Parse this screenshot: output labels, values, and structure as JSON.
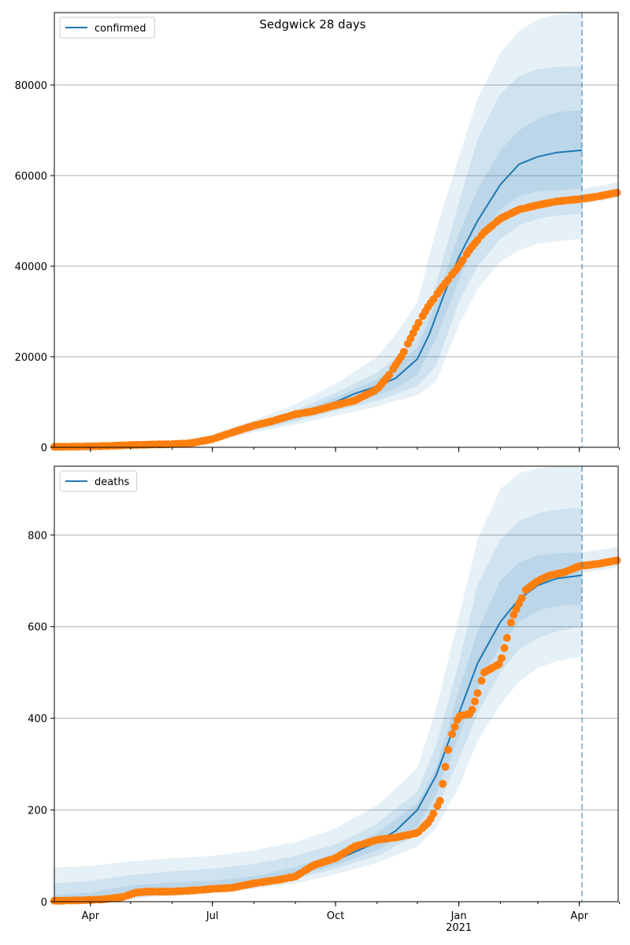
{
  "figure": {
    "title": "Sedgwick 28 days"
  },
  "colors": {
    "line": "#1f77b4",
    "band": "#1f77b4",
    "observed": "#ff7f0e",
    "grid": "#b0b0b0",
    "vline": "#1f77b4"
  },
  "x_axis": {
    "ticks": [
      {
        "label": "Apr",
        "date": "2020-04-01"
      },
      {
        "label": "Jul",
        "date": "2020-07-01"
      },
      {
        "label": "Oct",
        "date": "2020-10-01"
      },
      {
        "label": "Jan",
        "sublabel": "2021",
        "date": "2021-01-01"
      },
      {
        "label": "Apr",
        "date": "2021-04-01"
      }
    ],
    "range": [
      "2020-03-05",
      "2021-04-30"
    ],
    "forecast_start": "2021-04-03"
  },
  "chart_data": [
    {
      "type": "line",
      "legend": "confirmed",
      "legend_position": "upper-left",
      "grid": "y",
      "ylim": [
        0,
        96000
      ],
      "yticks": [
        0,
        20000,
        40000,
        60000,
        80000
      ],
      "line": {
        "name": "confirmed",
        "x": [
          "2020-03-05",
          "2020-04-01",
          "2020-05-01",
          "2020-06-01",
          "2020-06-15",
          "2020-07-01",
          "2020-07-15",
          "2020-08-01",
          "2020-08-15",
          "2020-09-01",
          "2020-09-15",
          "2020-10-01",
          "2020-10-15",
          "2020-11-01",
          "2020-11-15",
          "2020-12-01",
          "2020-12-10",
          "2020-12-20",
          "2021-01-01",
          "2021-01-15",
          "2021-02-01",
          "2021-02-15",
          "2021-03-01",
          "2021-03-15",
          "2021-04-03"
        ],
        "y": [
          100,
          150,
          300,
          700,
          1000,
          1800,
          3000,
          4300,
          5200,
          6700,
          8300,
          10000,
          11800,
          13500,
          15300,
          19500,
          25000,
          33000,
          42000,
          50000,
          58000,
          62500,
          64200,
          65100,
          65600
        ]
      },
      "bands": {
        "x": [
          "2020-03-05",
          "2020-06-01",
          "2020-07-01",
          "2020-08-01",
          "2020-09-01",
          "2020-10-01",
          "2020-11-01",
          "2020-11-15",
          "2020-12-01",
          "2020-12-15",
          "2021-01-01",
          "2021-01-15",
          "2021-02-01",
          "2021-02-15",
          "2021-03-01",
          "2021-03-15",
          "2021-04-03"
        ],
        "levels": [
          {
            "lower": [
              50,
              500,
              1300,
              3300,
              5000,
              7000,
              9000,
              10300,
              11500,
              14500,
              27000,
              35000,
              41000,
              43500,
              45000,
              45500,
              46000
            ],
            "upper": [
              200,
              1200,
              2800,
              6000,
              9500,
              14000,
              20000,
              25000,
              32000,
              48000,
              64000,
              77000,
              87000,
              92000,
              94500,
              95500,
              96000
            ]
          },
          {
            "lower": [
              70,
              600,
              1500,
              3700,
              5700,
              8000,
              10300,
              11700,
              13500,
              18000,
              32000,
              40000,
              46000,
              49000,
              50500,
              51200,
              51500
            ],
            "upper": [
              170,
              1000,
              2300,
              5200,
              8200,
              12000,
              16500,
              19800,
              24500,
              36000,
              54000,
              68000,
              78000,
              82000,
              83500,
              84000,
              84200
            ]
          },
          {
            "lower": [
              80,
              650,
              1650,
              4000,
              6200,
              8800,
              11500,
              13000,
              16000,
              24000,
              37000,
              46000,
              52500,
              55500,
              56500,
              56800,
              57000
            ],
            "upper": [
              140,
              850,
              2000,
              4800,
              7400,
              11000,
              15000,
              18000,
              22000,
              32000,
              47000,
              57000,
              65500,
              70000,
              72500,
              74000,
              74500
            ]
          }
        ]
      },
      "observed": {
        "name": "confirmed observed",
        "x": [
          "2020-03-05",
          "2020-04-01",
          "2020-04-15",
          "2020-05-01",
          "2020-05-15",
          "2020-06-01",
          "2020-06-15",
          "2020-07-01",
          "2020-07-15",
          "2020-08-01",
          "2020-08-15",
          "2020-09-01",
          "2020-09-15",
          "2020-10-01",
          "2020-10-15",
          "2020-11-01",
          "2020-11-10",
          "2020-11-20",
          "2020-12-01",
          "2020-12-10",
          "2020-12-20",
          "2021-01-01",
          "2021-01-10",
          "2021-01-20",
          "2021-02-01",
          "2021-02-15",
          "2021-03-01",
          "2021-03-15",
          "2021-04-01",
          "2021-04-15",
          "2021-04-30"
        ],
        "y": [
          100,
          200,
          300,
          500,
          600,
          700,
          900,
          1800,
          3200,
          4800,
          5800,
          7300,
          8000,
          9300,
          10300,
          12800,
          16000,
          20500,
          27000,
          31500,
          35500,
          40000,
          44000,
          47500,
          50500,
          52500,
          53500,
          54300,
          54800,
          55400,
          56300
        ]
      }
    },
    {
      "type": "line",
      "legend": "deaths",
      "legend_position": "upper-left",
      "grid": "y",
      "ylim": [
        0,
        950
      ],
      "yticks": [
        0,
        200,
        400,
        600,
        800
      ],
      "line": {
        "name": "deaths",
        "x": [
          "2020-03-05",
          "2020-04-01",
          "2020-04-15",
          "2020-05-01",
          "2020-06-01",
          "2020-07-01",
          "2020-08-01",
          "2020-09-01",
          "2020-10-01",
          "2020-11-01",
          "2020-11-15",
          "2020-12-01",
          "2020-12-15",
          "2021-01-01",
          "2021-01-15",
          "2021-02-01",
          "2021-02-15",
          "2021-03-01",
          "2021-03-15",
          "2021-04-03"
        ],
        "y": [
          0,
          3,
          10,
          20,
          25,
          30,
          40,
          60,
          90,
          130,
          155,
          200,
          275,
          410,
          520,
          610,
          660,
          690,
          705,
          712
        ]
      },
      "bands": {
        "x": [
          "2020-03-05",
          "2020-04-01",
          "2020-05-01",
          "2020-06-01",
          "2020-07-01",
          "2020-08-01",
          "2020-09-01",
          "2020-10-01",
          "2020-11-01",
          "2020-12-01",
          "2020-12-15",
          "2021-01-01",
          "2021-01-15",
          "2021-02-01",
          "2021-02-15",
          "2021-03-01",
          "2021-03-15",
          "2021-04-03"
        ],
        "levels": [
          {
            "lower": [
              0,
              0,
              5,
              15,
              20,
              28,
              40,
              60,
              85,
              120,
              160,
              250,
              350,
              430,
              480,
              510,
              525,
              535
            ],
            "upper": [
              75,
              78,
              88,
              95,
              100,
              112,
              130,
              160,
              210,
              290,
              420,
              620,
              790,
              900,
              935,
              945,
              950,
              950
            ]
          },
          {
            "lower": [
              0,
              0,
              8,
              18,
              23,
              33,
              50,
              72,
              100,
              145,
              200,
              310,
              410,
              500,
              550,
              575,
              590,
              600
            ],
            "upper": [
              40,
              45,
              58,
              66,
              72,
              82,
              100,
              125,
              170,
              240,
              340,
              520,
              690,
              790,
              830,
              848,
              855,
              860
            ]
          },
          {
            "lower": [
              0,
              0,
              12,
              20,
              26,
              37,
              55,
              80,
              112,
              165,
              235,
              360,
              465,
              560,
              610,
              635,
              645,
              650
            ],
            "upper": [
              15,
              20,
              35,
              42,
              46,
              55,
              75,
              105,
              150,
              215,
              290,
              460,
              590,
              700,
              740,
              755,
              760,
              762
            ]
          }
        ]
      },
      "observed": {
        "name": "deaths observed",
        "x": [
          "2020-03-05",
          "2020-03-25",
          "2020-04-10",
          "2020-04-25",
          "2020-05-05",
          "2020-05-15",
          "2020-06-01",
          "2020-06-20",
          "2020-07-01",
          "2020-07-15",
          "2020-08-01",
          "2020-08-20",
          "2020-09-01",
          "2020-09-15",
          "2020-10-01",
          "2020-10-15",
          "2020-11-01",
          "2020-11-15",
          "2020-12-01",
          "2020-12-10",
          "2020-12-18",
          "2020-12-25",
          "2021-01-01",
          "2021-01-10",
          "2021-01-20",
          "2021-02-01",
          "2021-02-10",
          "2021-02-20",
          "2021-03-01",
          "2021-03-10",
          "2021-03-20",
          "2021-04-01",
          "2021-04-15",
          "2021-04-30"
        ],
        "y": [
          2,
          3,
          5,
          10,
          20,
          22,
          22,
          25,
          28,
          30,
          40,
          48,
          55,
          80,
          95,
          120,
          135,
          140,
          150,
          175,
          220,
          350,
          405,
          410,
          500,
          520,
          620,
          680,
          700,
          712,
          718,
          732,
          737,
          745
        ]
      }
    }
  ]
}
